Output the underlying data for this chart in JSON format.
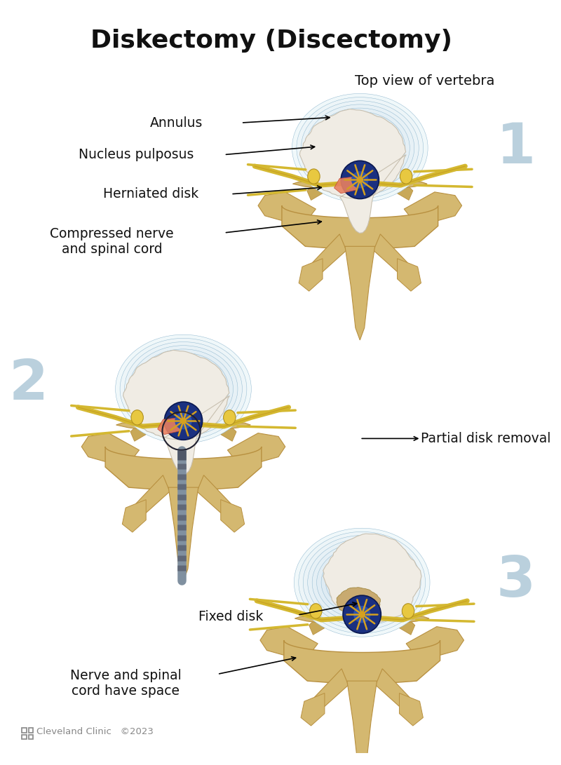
{
  "title": "Diskectomy (Discectomy)",
  "title_fontsize": 26,
  "title_fontweight": "bold",
  "background_color": "#ffffff",
  "figsize": [
    8.0,
    10.91
  ],
  "dpi": 100,
  "labels": {
    "top_view": "Top view of vertebra",
    "annulus": "Annulus",
    "nucleus": "Nucleus pulposus",
    "herniated": "Herniated disk",
    "compressed": "Compressed nerve\nand spinal cord",
    "partial": "Partial disk removal",
    "fixed": "Fixed disk",
    "nerve_space": "Nerve and spinal\ncord have space"
  },
  "number_labels": [
    "1",
    "2",
    "3"
  ],
  "number_color": "#aec8d8",
  "copyright": "Cleveland Clinic   ©2023",
  "annotation_color": "#111111",
  "label_fontsize": 12.5,
  "number_fontsize": 58,
  "bone_color": "#d4b870",
  "bone_edge": "#b89040",
  "disk_outer": "#c8dce8",
  "disk_inner": "#e8f0f8",
  "nucleus_color": "#f0ece4",
  "canal_blue": "#1a3080",
  "canal_yellow": "#d4a020",
  "nerve_yellow": "#d4b830",
  "pink_compress": "#e88060",
  "gray_tool": "#8090a0"
}
